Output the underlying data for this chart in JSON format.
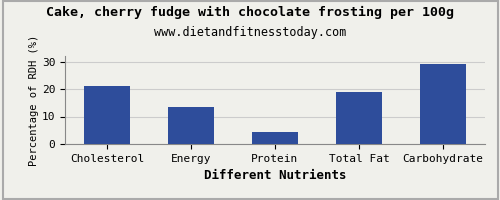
{
  "title": "Cake, cherry fudge with chocolate frosting per 100g",
  "subtitle": "www.dietandfitnesstoday.com",
  "categories": [
    "Cholesterol",
    "Energy",
    "Protein",
    "Total Fat",
    "Carbohydrate"
  ],
  "values": [
    21,
    13.3,
    4.5,
    19,
    29.2
  ],
  "bar_color": "#2e4d9b",
  "xlabel": "Different Nutrients",
  "ylabel": "Percentage of RDH (%)",
  "ylim": [
    0,
    32
  ],
  "yticks": [
    0,
    10,
    20,
    30
  ],
  "background_color": "#f0f0eb",
  "grid_color": "#cccccc",
  "title_fontsize": 9.5,
  "subtitle_fontsize": 8.5,
  "tick_fontsize": 8,
  "xlabel_fontsize": 9,
  "ylabel_fontsize": 7.5,
  "border_color": "#aaaaaa"
}
